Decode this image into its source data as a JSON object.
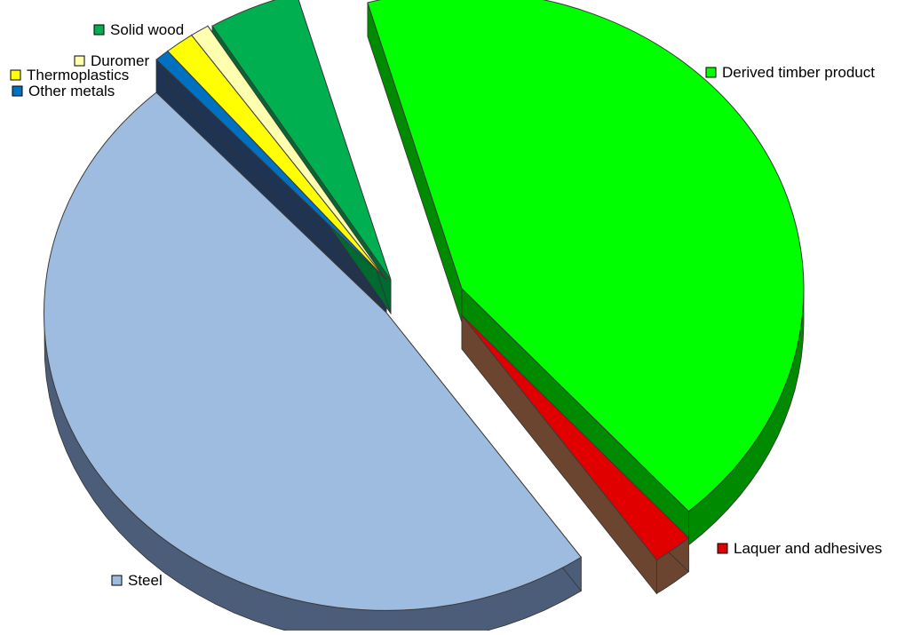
{
  "chart_data": {
    "type": "pie",
    "style": "3d-exploded",
    "title": "",
    "unit": "",
    "categories": [
      "Derived timber product",
      "Laquer and adhesives",
      "Steel",
      "Other metals",
      "Thermoplastics",
      "Duromer",
      "Solid wood"
    ],
    "values": [
      42.9,
      1.9,
      47.9,
      0.7,
      1.4,
      0.9,
      4.3
    ],
    "colors": {
      "Derived timber product": "#00ff00",
      "Laquer and adhesives": "#e00000",
      "Steel": "#9ebbe0",
      "Other metals": "#0070c0",
      "Thermoplastics": "#ffff00",
      "Duromer": "#ffffb0",
      "Solid wood": "#00b050"
    },
    "side_colors": {
      "Derived timber product": "#008a00",
      "Laquer and adhesives": "#6b4530",
      "Steel": "#4b5d78",
      "Other metals": "#1f3452",
      "Thermoplastics": "#1f3452",
      "Duromer": "#1f3452",
      "Solid wood": "#006a30"
    },
    "legend": {
      "placement": "labels beside slices",
      "entries": [
        "Solid wood",
        "Duromer",
        "Thermoplastics",
        "Other metals",
        "Derived timber product",
        "Laquer and adhesives",
        "Steel"
      ]
    }
  }
}
